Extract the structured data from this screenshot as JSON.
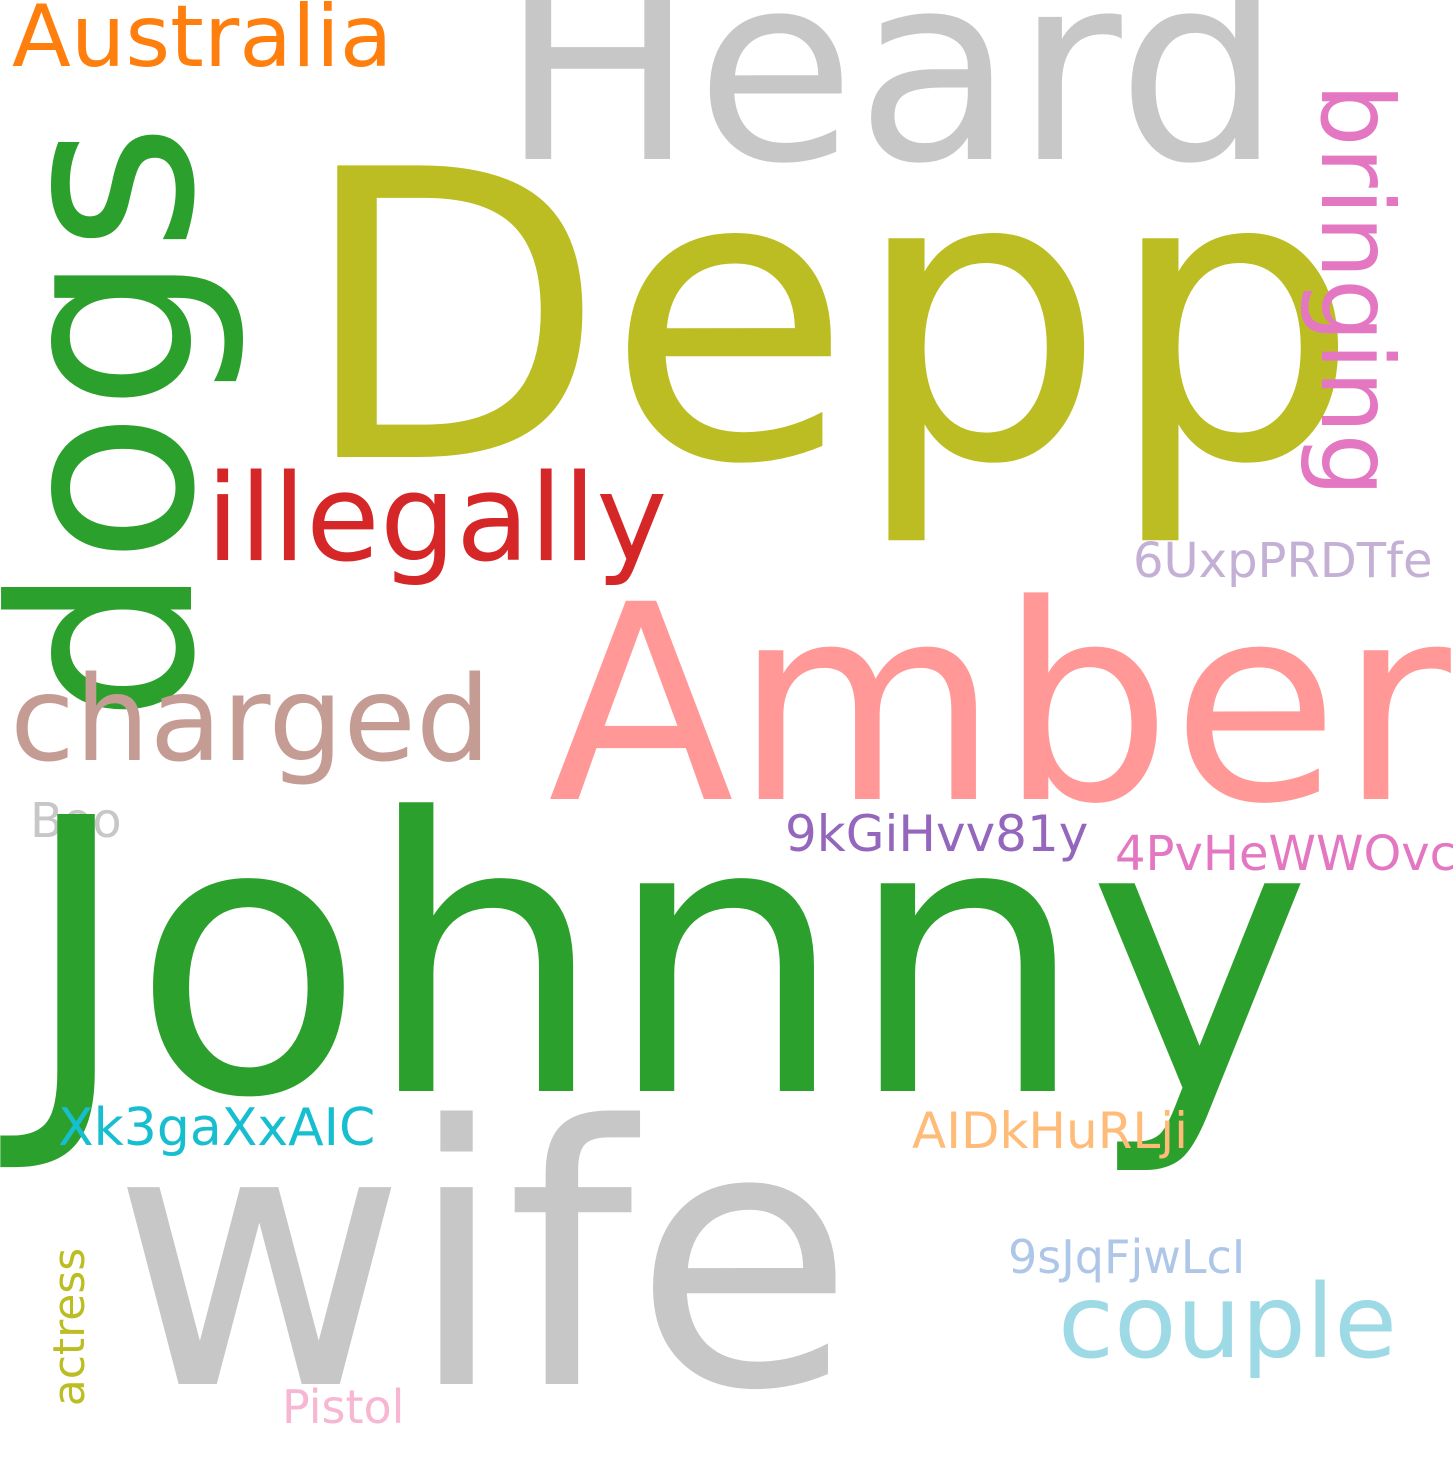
{
  "words": {
    "johnny": {
      "text": "Johnny",
      "color": "#2ca02c"
    },
    "wife": {
      "text": "wife",
      "color": "#c7c7c7"
    },
    "depp": {
      "text": "Depp",
      "color": "#bcbd22"
    },
    "amber": {
      "text": "Amber",
      "color": "#ff9896"
    },
    "heard": {
      "text": "Heard",
      "color": "#c7c7c7"
    },
    "dogs": {
      "text": "dogs",
      "color": "#2ca02c"
    },
    "illegally": {
      "text": "illegally",
      "color": "#d62728"
    },
    "charged": {
      "text": "charged",
      "color": "#c49c94"
    },
    "australia": {
      "text": "Australia",
      "color": "#ff7f0e"
    },
    "bringing": {
      "text": "bringing",
      "color": "#e377c2"
    },
    "couple": {
      "text": "couple",
      "color": "#9edae5"
    },
    "code1": {
      "text": "6UxpPRDTfe",
      "color": "#c5b0d5"
    },
    "code2": {
      "text": "9kGiHvv81y",
      "color": "#9467bd"
    },
    "code3": {
      "text": "4PvHeWWOvc",
      "color": "#e377c2"
    },
    "code4": {
      "text": "Xk3gaXxAIC",
      "color": "#17becf"
    },
    "code5": {
      "text": "AIDkHuRLji",
      "color": "#ffbb78"
    },
    "code6": {
      "text": "9sJqFjwLcI",
      "color": "#aec7e8"
    },
    "boo": {
      "text": "Boo",
      "color": "#c7c7c7"
    },
    "actress": {
      "text": "actress",
      "color": "#bcbd22"
    },
    "pistol": {
      "text": "Pistol",
      "color": "#f7b6d2"
    }
  }
}
